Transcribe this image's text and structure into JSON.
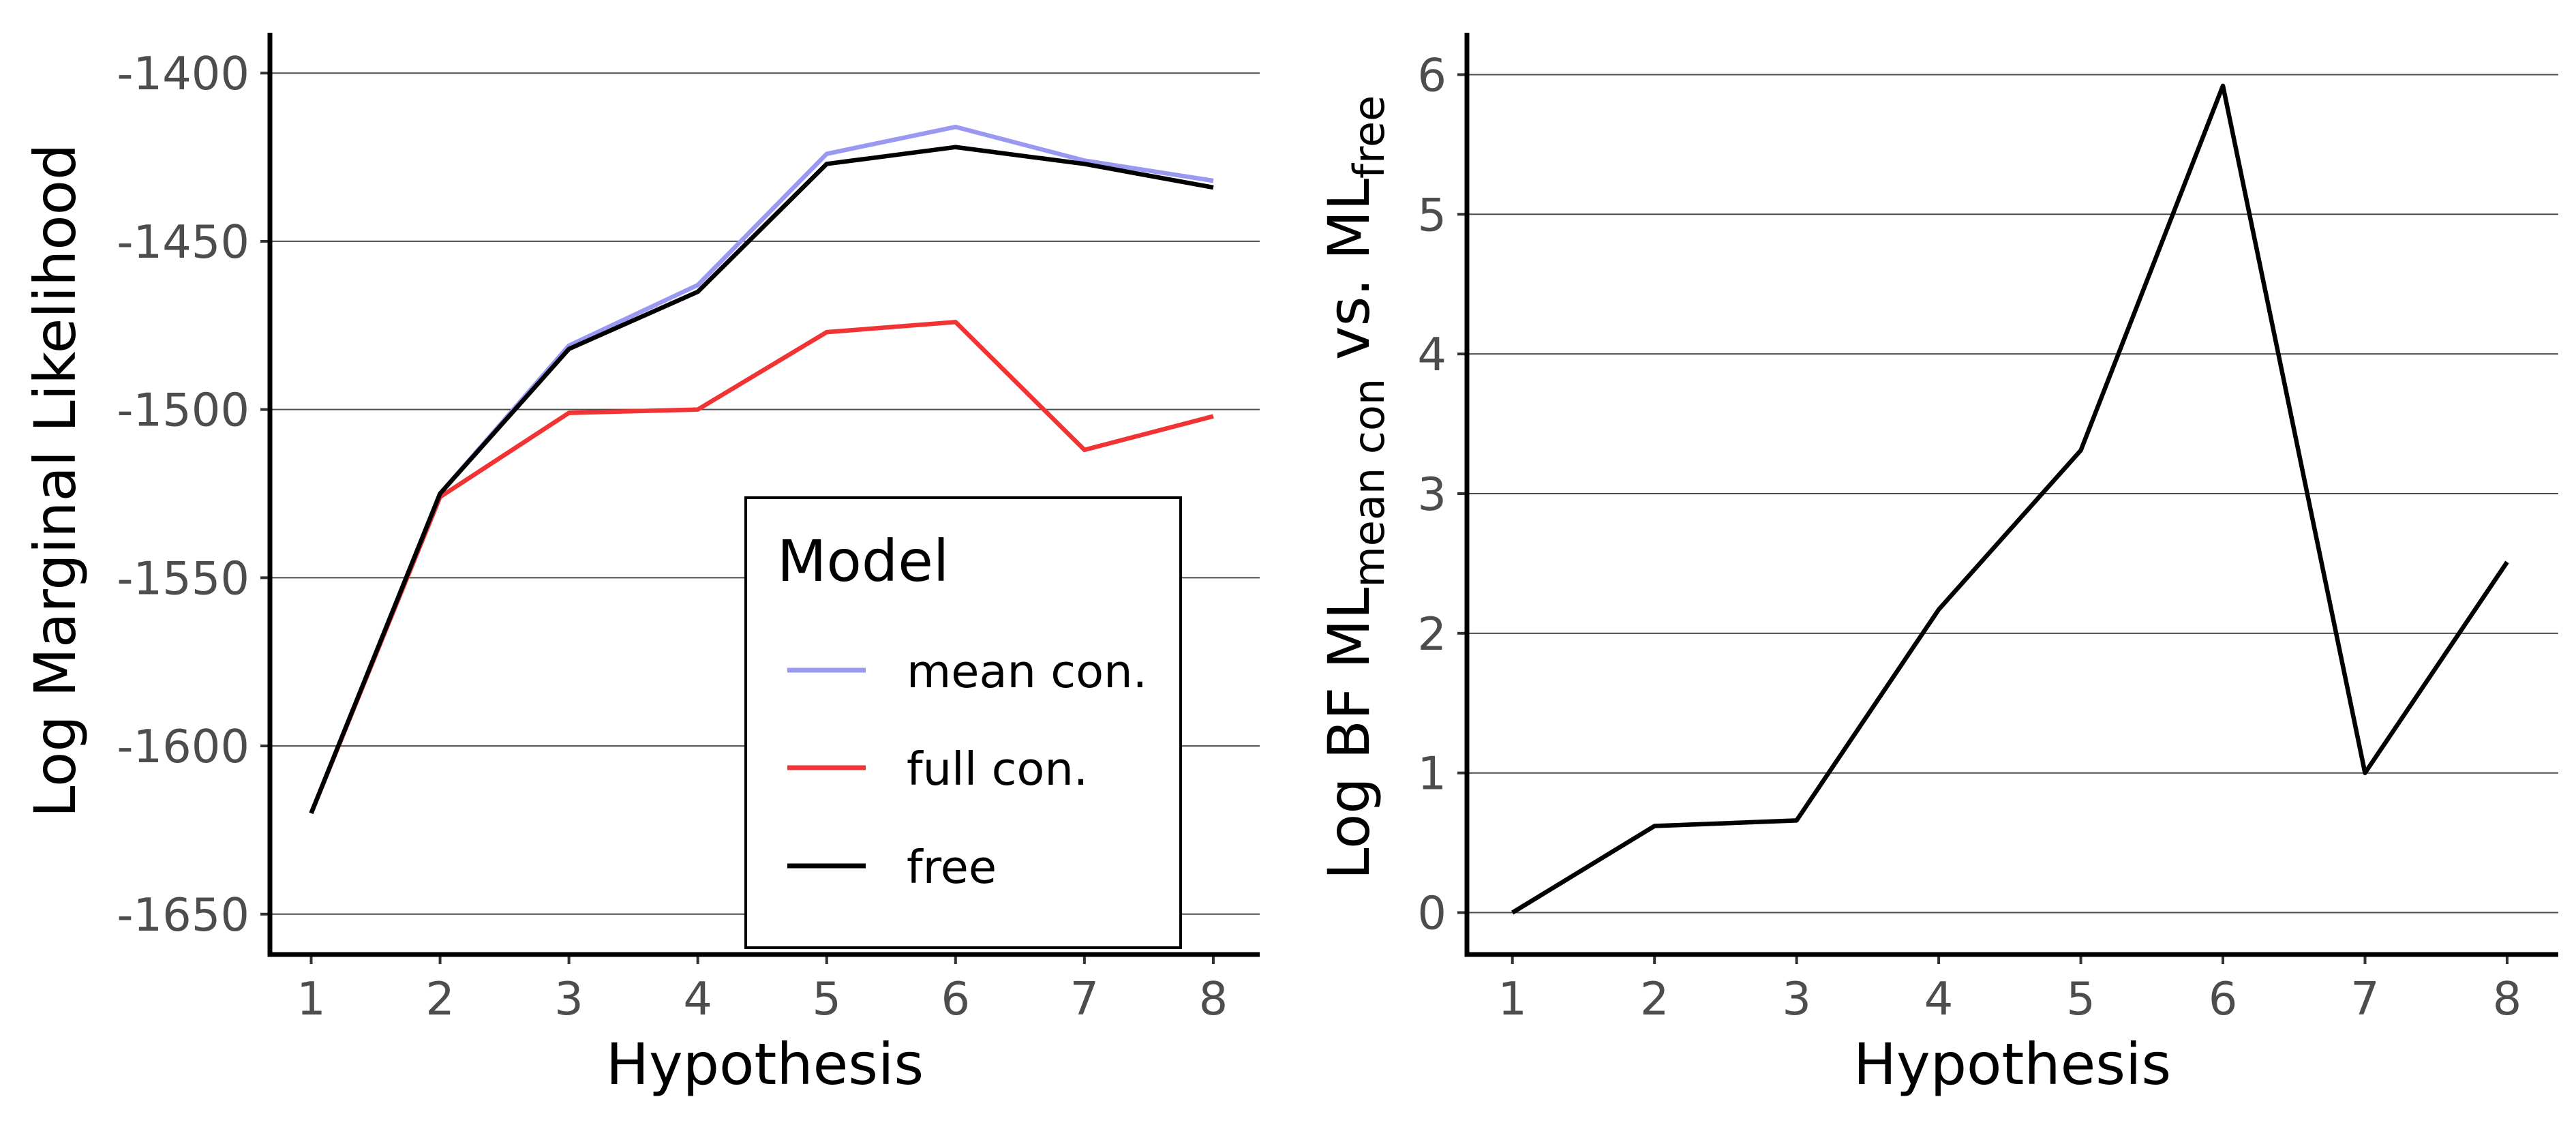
{
  "chart_data": [
    {
      "type": "line",
      "xlabel": "Hypothesis",
      "ylabel": "Log Marginal Likelihood",
      "x": [
        1,
        2,
        3,
        4,
        5,
        6,
        7,
        8
      ],
      "xticks": [
        "1",
        "2",
        "3",
        "4",
        "5",
        "6",
        "7",
        "8"
      ],
      "yticks": [
        "-1400",
        "-1450",
        "-1500",
        "-1550",
        "-1600",
        "-1650"
      ],
      "ylim": [
        -1662,
        -1388
      ],
      "xlim": [
        0.68,
        8.36
      ],
      "grid": "horizontal major",
      "legend": {
        "title": "Model",
        "placement": "bottom-right inside",
        "entries": [
          "mean con.",
          "full con.",
          "free"
        ]
      },
      "series": [
        {
          "name": "mean con.",
          "color": "#9999f2",
          "values": [
            -1620,
            -1525,
            -1481,
            -1463,
            -1424,
            -1416,
            -1426,
            -1432
          ]
        },
        {
          "name": "full con.",
          "color": "#f23333",
          "values": [
            -1620,
            -1526,
            -1501,
            -1500,
            -1477,
            -1474,
            -1512,
            -1502
          ]
        },
        {
          "name": "free",
          "color": "#000000",
          "values": [
            -1620,
            -1525,
            -1482,
            -1465,
            -1427,
            -1422,
            -1427,
            -1434
          ]
        }
      ]
    },
    {
      "type": "line",
      "xlabel": "Hypothesis",
      "ylabel": {
        "prefix": "Log BF ML",
        "sub1": "mean con",
        "middle": " vs. ML",
        "sub2": "free"
      },
      "x": [
        1,
        2,
        3,
        4,
        5,
        6,
        7,
        8
      ],
      "xticks": [
        "1",
        "2",
        "3",
        "4",
        "5",
        "6",
        "7",
        "8"
      ],
      "yticks": [
        "0",
        "1",
        "2",
        "3",
        "4",
        "5",
        "6"
      ],
      "ylim": [
        -0.3,
        6.3
      ],
      "xlim": [
        0.68,
        8.36
      ],
      "grid": "horizontal major",
      "series": [
        {
          "color": "#000000",
          "values": [
            0,
            0.62,
            0.66,
            2.17,
            3.31,
            5.92,
            1.0,
            2.51
          ]
        }
      ]
    }
  ]
}
